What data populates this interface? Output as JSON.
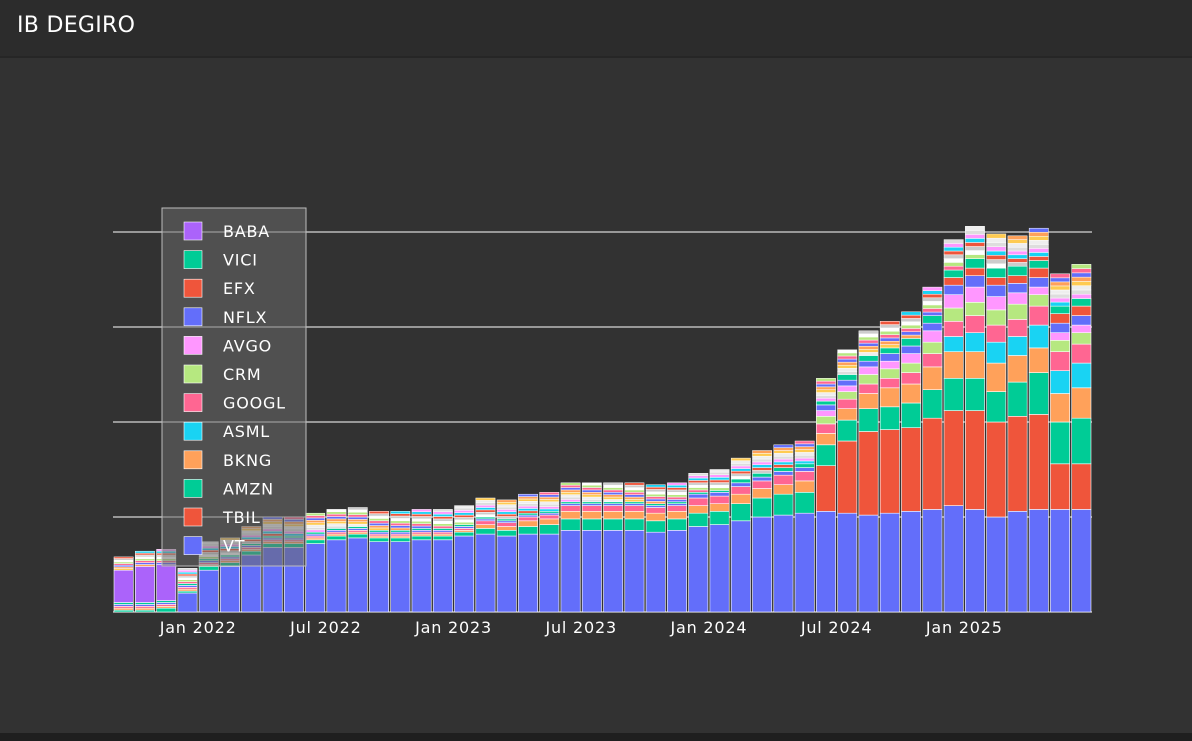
{
  "app": {
    "title": "IB DEGIRO"
  },
  "colors": {
    "background": "#323232",
    "header": "#2c2c2c",
    "gridline": "#ffffff",
    "legend_bg": "#6a6a6a"
  },
  "chart_data": {
    "type": "bar",
    "stacked": true,
    "title": "",
    "xlabel": "",
    "ylabel": "",
    "grid": "horizontal",
    "legend_position": "top-left",
    "y_tick_labels_visible": false,
    "x_tick_labels": [
      "Jan 2022",
      "Jul 2022",
      "Jan 2023",
      "Jul 2023",
      "Jan 2024",
      "Jul 2024",
      "Jan 2025"
    ],
    "categories": [
      "2021-10",
      "2021-11",
      "2021-12",
      "2022-01",
      "2022-02",
      "2022-03",
      "2022-04",
      "2022-05",
      "2022-06",
      "2022-07",
      "2022-08",
      "2022-09",
      "2022-10",
      "2022-11",
      "2022-12",
      "2023-01",
      "2023-02",
      "2023-03",
      "2023-04",
      "2023-05",
      "2023-06",
      "2023-07",
      "2023-08",
      "2023-09",
      "2023-10",
      "2023-11",
      "2023-12",
      "2024-01",
      "2024-02",
      "2024-03",
      "2024-04",
      "2024-05",
      "2024-06",
      "2024-07",
      "2024-08",
      "2024-09",
      "2024-10",
      "2024-11",
      "2024-12",
      "2025-01",
      "2025-02",
      "2025-03",
      "2025-04",
      "2025-05",
      "2025-06",
      "2025-07"
    ],
    "x_ticks_at": [
      "2022-01",
      "2022-07",
      "2023-01",
      "2023-07",
      "2024-01",
      "2024-07",
      "2025-01"
    ],
    "ylim": [
      0,
      1.0
    ],
    "gridlines_at": [
      0,
      0.25,
      0.5,
      0.75
    ],
    "series": [
      {
        "name": "VT",
        "color": "#636efa",
        "values": [
          0,
          0,
          0,
          0.05,
          0.11,
          0.12,
          0.15,
          0.17,
          0.17,
          0.18,
          0.19,
          0.195,
          0.185,
          0.185,
          0.19,
          0.19,
          0.2,
          0.205,
          0.2,
          0.205,
          0.205,
          0.215,
          0.215,
          0.215,
          0.215,
          0.21,
          0.215,
          0.225,
          0.23,
          0.24,
          0.25,
          0.255,
          0.26,
          0.265,
          0.26,
          0.255,
          0.26,
          0.265,
          0.27,
          0.28,
          0.27,
          0.25,
          0.265,
          0.27,
          0.27,
          0.27
        ]
      },
      {
        "name": "TBIL",
        "color": "#ef553b",
        "values": [
          0,
          0,
          0,
          0,
          0,
          0,
          0,
          0,
          0,
          0,
          0,
          0,
          0,
          0,
          0,
          0,
          0,
          0,
          0,
          0,
          0,
          0,
          0,
          0,
          0,
          0,
          0,
          0,
          0,
          0,
          0,
          0,
          0,
          0.12,
          0.19,
          0.22,
          0.22,
          0.22,
          0.24,
          0.25,
          0.26,
          0.25,
          0.25,
          0.25,
          0.12,
          0.12
        ]
      },
      {
        "name": "AMZN",
        "color": "#00cc96",
        "values": [
          0.005,
          0.005,
          0.01,
          0.005,
          0.01,
          0.01,
          0.01,
          0.01,
          0.01,
          0.01,
          0.01,
          0.01,
          0.01,
          0.01,
          0.01,
          0.01,
          0.01,
          0.015,
          0.015,
          0.02,
          0.025,
          0.03,
          0.03,
          0.03,
          0.03,
          0.03,
          0.03,
          0.035,
          0.035,
          0.045,
          0.05,
          0.055,
          0.055,
          0.055,
          0.055,
          0.06,
          0.06,
          0.065,
          0.075,
          0.085,
          0.085,
          0.08,
          0.09,
          0.11,
          0.11,
          0.12
        ]
      },
      {
        "name": "BKNG",
        "color": "#ffa15a",
        "values": [
          0.005,
          0.005,
          0.005,
          0.005,
          0.005,
          0.005,
          0.005,
          0.005,
          0.005,
          0.005,
          0.005,
          0.005,
          0.005,
          0.005,
          0.005,
          0.005,
          0.005,
          0.01,
          0.01,
          0.015,
          0.015,
          0.02,
          0.02,
          0.02,
          0.02,
          0.02,
          0.02,
          0.02,
          0.02,
          0.025,
          0.025,
          0.025,
          0.03,
          0.03,
          0.03,
          0.04,
          0.05,
          0.05,
          0.06,
          0.07,
          0.07,
          0.075,
          0.07,
          0.065,
          0.075,
          0.08
        ]
      },
      {
        "name": "ASML",
        "color": "#19d3f3",
        "values": [
          0,
          0,
          0,
          0,
          0,
          0,
          0,
          0,
          0,
          0,
          0,
          0,
          0,
          0,
          0,
          0,
          0,
          0,
          0,
          0,
          0,
          0,
          0,
          0,
          0,
          0,
          0,
          0,
          0,
          0,
          0,
          0,
          0,
          0,
          0,
          0,
          0,
          0,
          0,
          0.04,
          0.05,
          0.055,
          0.05,
          0.06,
          0.06,
          0.065
        ]
      },
      {
        "name": "GOOGL",
        "color": "#ff6692",
        "values": [
          0.005,
          0.005,
          0.005,
          0.005,
          0.005,
          0.005,
          0.005,
          0.005,
          0.005,
          0.005,
          0.005,
          0.005,
          0.005,
          0.005,
          0.005,
          0.005,
          0.005,
          0.01,
          0.01,
          0.01,
          0.01,
          0.015,
          0.015,
          0.015,
          0.015,
          0.015,
          0.015,
          0.02,
          0.02,
          0.02,
          0.02,
          0.025,
          0.025,
          0.025,
          0.025,
          0.025,
          0.025,
          0.03,
          0.035,
          0.04,
          0.045,
          0.045,
          0.045,
          0.05,
          0.05,
          0.05
        ]
      },
      {
        "name": "CRM",
        "color": "#b6e880",
        "values": [
          0,
          0,
          0,
          0,
          0,
          0,
          0,
          0,
          0,
          0,
          0,
          0,
          0,
          0,
          0,
          0,
          0,
          0,
          0,
          0,
          0,
          0,
          0,
          0,
          0,
          0,
          0,
          0,
          0,
          0,
          0,
          0,
          0,
          0.02,
          0.02,
          0.025,
          0.025,
          0.025,
          0.03,
          0.035,
          0.035,
          0.04,
          0.04,
          0.03,
          0.03,
          0.03
        ]
      },
      {
        "name": "AVGO",
        "color": "#ff97ff",
        "values": [
          0,
          0,
          0,
          0,
          0,
          0,
          0,
          0,
          0,
          0,
          0,
          0,
          0,
          0,
          0,
          0,
          0,
          0,
          0,
          0,
          0,
          0,
          0,
          0,
          0,
          0,
          0,
          0,
          0,
          0,
          0,
          0,
          0,
          0.015,
          0.015,
          0.02,
          0.02,
          0.025,
          0.03,
          0.035,
          0.04,
          0.035,
          0.03,
          0.02,
          0.02,
          0.02
        ]
      },
      {
        "name": "NFLX",
        "color": "#636efa",
        "values": [
          0.005,
          0.005,
          0.005,
          0.005,
          0.005,
          0.005,
          0.005,
          0.005,
          0.005,
          0.005,
          0.005,
          0.005,
          0.005,
          0.005,
          0.005,
          0.005,
          0.005,
          0.005,
          0.005,
          0.005,
          0.005,
          0.005,
          0.005,
          0.005,
          0.005,
          0.005,
          0.005,
          0.01,
          0.01,
          0.01,
          0.01,
          0.01,
          0.01,
          0.015,
          0.015,
          0.015,
          0.02,
          0.02,
          0.02,
          0.025,
          0.03,
          0.03,
          0.025,
          0.025,
          0.025,
          0.025
        ]
      },
      {
        "name": "EFX",
        "color": "#ef553b",
        "values": [
          0,
          0,
          0,
          0,
          0,
          0,
          0,
          0,
          0,
          0,
          0,
          0,
          0,
          0,
          0,
          0,
          0,
          0,
          0,
          0,
          0,
          0,
          0,
          0,
          0,
          0,
          0,
          0,
          0,
          0,
          0,
          0,
          0,
          0,
          0,
          0,
          0,
          0,
          0,
          0.02,
          0.02,
          0.02,
          0.02,
          0.025,
          0.025,
          0.025
        ]
      },
      {
        "name": "VICI",
        "color": "#00cc96",
        "values": [
          0.005,
          0.005,
          0.005,
          0.005,
          0.005,
          0.005,
          0.005,
          0.005,
          0.005,
          0.005,
          0.005,
          0.005,
          0.005,
          0.005,
          0.005,
          0.005,
          0.005,
          0.005,
          0.005,
          0.005,
          0.005,
          0.005,
          0.005,
          0.005,
          0.005,
          0.005,
          0.005,
          0.005,
          0.005,
          0.01,
          0.01,
          0.01,
          0.01,
          0.01,
          0.015,
          0.015,
          0.015,
          0.02,
          0.02,
          0.02,
          0.025,
          0.025,
          0.025,
          0.02,
          0.02,
          0.02
        ]
      },
      {
        "name": "BABA",
        "color": "#ab63fa",
        "values": [
          0.085,
          0.095,
          0.095,
          0,
          0,
          0,
          0,
          0,
          0,
          0,
          0,
          0,
          0,
          0,
          0,
          0,
          0,
          0,
          0,
          0,
          0,
          0,
          0,
          0,
          0,
          0,
          0,
          0,
          0,
          0,
          0,
          0,
          0,
          0,
          0,
          0,
          0,
          0,
          0,
          0,
          0,
          0,
          0,
          0,
          0,
          0
        ]
      }
    ],
    "other_holdings_total": [
      0.035,
      0.04,
      0.04,
      0.04,
      0.045,
      0.045,
      0.045,
      0.05,
      0.05,
      0.05,
      0.05,
      0.05,
      0.05,
      0.05,
      0.05,
      0.05,
      0.05,
      0.05,
      0.05,
      0.05,
      0.05,
      0.05,
      0.05,
      0.05,
      0.05,
      0.05,
      0.05,
      0.05,
      0.055,
      0.055,
      0.06,
      0.06,
      0.06,
      0.06,
      0.065,
      0.065,
      0.07,
      0.07,
      0.075,
      0.08,
      0.085,
      0.09,
      0.08,
      0.085,
      0.085,
      0.09
    ],
    "other_holdings_colors": [
      "#fecb52",
      "#ffa15a",
      "#636efa",
      "#ff6692",
      "#b6e880",
      "#ffffff",
      "#cccccc",
      "#ef553b",
      "#19d3f3",
      "#ff97ff",
      "#dddddd",
      "#eeeeee"
    ],
    "legend_entries": [
      "BABA",
      "VICI",
      "EFX",
      "NFLX",
      "AVGO",
      "CRM",
      "GOOGL",
      "ASML",
      "BKNG",
      "AMZN",
      "TBIL",
      "VT"
    ]
  }
}
